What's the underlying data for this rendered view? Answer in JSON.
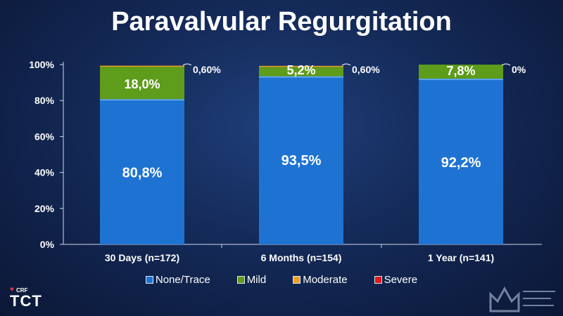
{
  "title": "Paravalvular Regurgitation",
  "colors": {
    "None/Trace": "#1e73d2",
    "Mild": "#5e9c1b",
    "Moderate": "#f0a020",
    "Severe": "#e01818",
    "text": "#ffffff",
    "axis": "#cfd8e8"
  },
  "chart_data": {
    "type": "bar",
    "stacked": true,
    "title": "Paravalvular Regurgitation",
    "xlabel": "",
    "ylabel": "",
    "ylim": [
      0,
      100
    ],
    "y_ticks": [
      "0%",
      "20%",
      "40%",
      "60%",
      "80%",
      "100%"
    ],
    "categories": [
      "30 Days (n=172)",
      "6 Months (n=154)",
      "1 Year (n=141)"
    ],
    "series": [
      {
        "name": "None/Trace",
        "values": [
          80.8,
          93.5,
          92.2
        ],
        "labels": [
          "80,8%",
          "93,5%",
          "92,2%"
        ]
      },
      {
        "name": "Mild",
        "values": [
          18.0,
          5.2,
          7.8
        ],
        "labels": [
          "18,0%",
          "5,2%",
          "7,8%"
        ]
      },
      {
        "name": "Moderate",
        "values": [
          0.6,
          0.6,
          0.0
        ],
        "labels": [
          "0,60%",
          "0,60%",
          "0%"
        ]
      },
      {
        "name": "Severe",
        "values": [
          0,
          0,
          0
        ],
        "labels": [
          "",
          "",
          ""
        ]
      }
    ],
    "legend_position": "bottom",
    "grid": false
  },
  "logo": {
    "crf": "CRF",
    "tct": "TCT"
  }
}
